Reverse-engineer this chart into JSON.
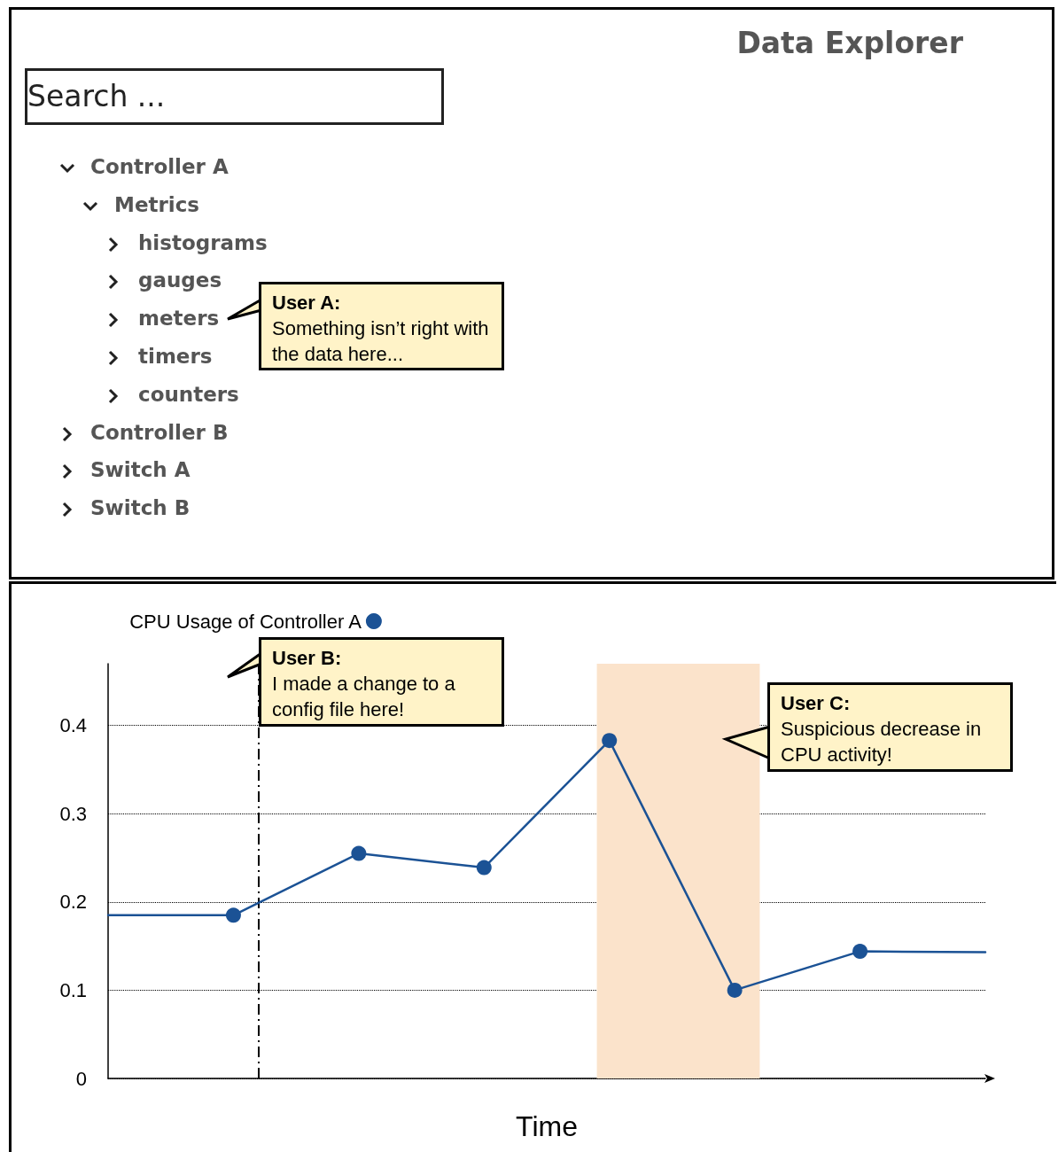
{
  "chart_data": [
    {
      "type": "other",
      "title": "Data Explorer",
      "annotations": [
        "Search ...",
        "Controller A",
        "Metrics",
        "histograms",
        "gauges",
        "meters",
        "timers",
        "counters",
        "Controller B",
        "Switch A",
        "Switch B",
        "User A:",
        "Something isn’t right with the data here..."
      ]
    },
    {
      "type": "line",
      "xlabel": "Time",
      "categories": [
        null,
        null,
        null,
        null,
        null,
        null,
        null,
        null
      ],
      "series": [
        {
          "name": "CPU Usage of Controller A",
          "color": "#1b5295",
          "values": [
            0.185,
            0.185,
            0.255,
            0.239,
            0.383,
            0.1,
            0.144,
            0.143
          ]
        }
      ],
      "ylim": [
        0,
        0.47
      ],
      "yticks": [
        0,
        0.1,
        0.2,
        0.3,
        0.4
      ],
      "tick_labels": "y",
      "grid": "y",
      "legend": "top left",
      "marker": "circle",
      "line_style": "solid",
      "annotations": [
        "User B:",
        "I made a change to a config file here!",
        "User C:",
        "Suspicious decrease in CPU activity!"
      ]
    }
  ]
}
